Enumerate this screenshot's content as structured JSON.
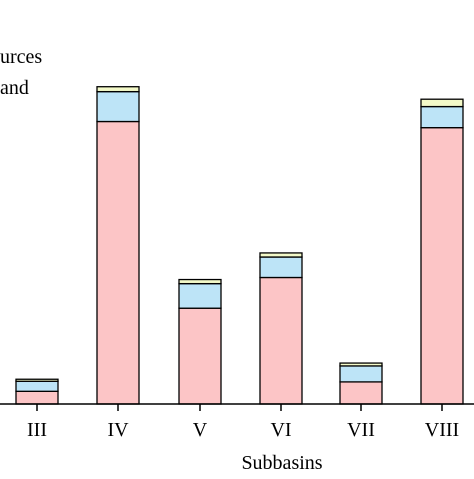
{
  "chart_data": {
    "type": "bar",
    "stacked": true,
    "categories": [
      "III",
      "IV",
      "V",
      "VI",
      "VII",
      "VIII"
    ],
    "series": [
      {
        "color": "#fcc5c6",
        "values": [
          0.62,
          13.8,
          4.68,
          6.18,
          1.08,
          13.5
        ]
      },
      {
        "color": "#bde4f7",
        "values": [
          0.49,
          1.46,
          1.2,
          1.0,
          0.78,
          1.03
        ]
      },
      {
        "color": "#f3f9c8",
        "values": [
          0.1,
          0.24,
          0.2,
          0.2,
          0.14,
          0.36
        ]
      }
    ],
    "xlabel": "Subbasins",
    "ylabel": "",
    "ylim": [
      0,
      16
    ],
    "grid": false,
    "legend_fragments": [
      "urces",
      "and"
    ]
  }
}
